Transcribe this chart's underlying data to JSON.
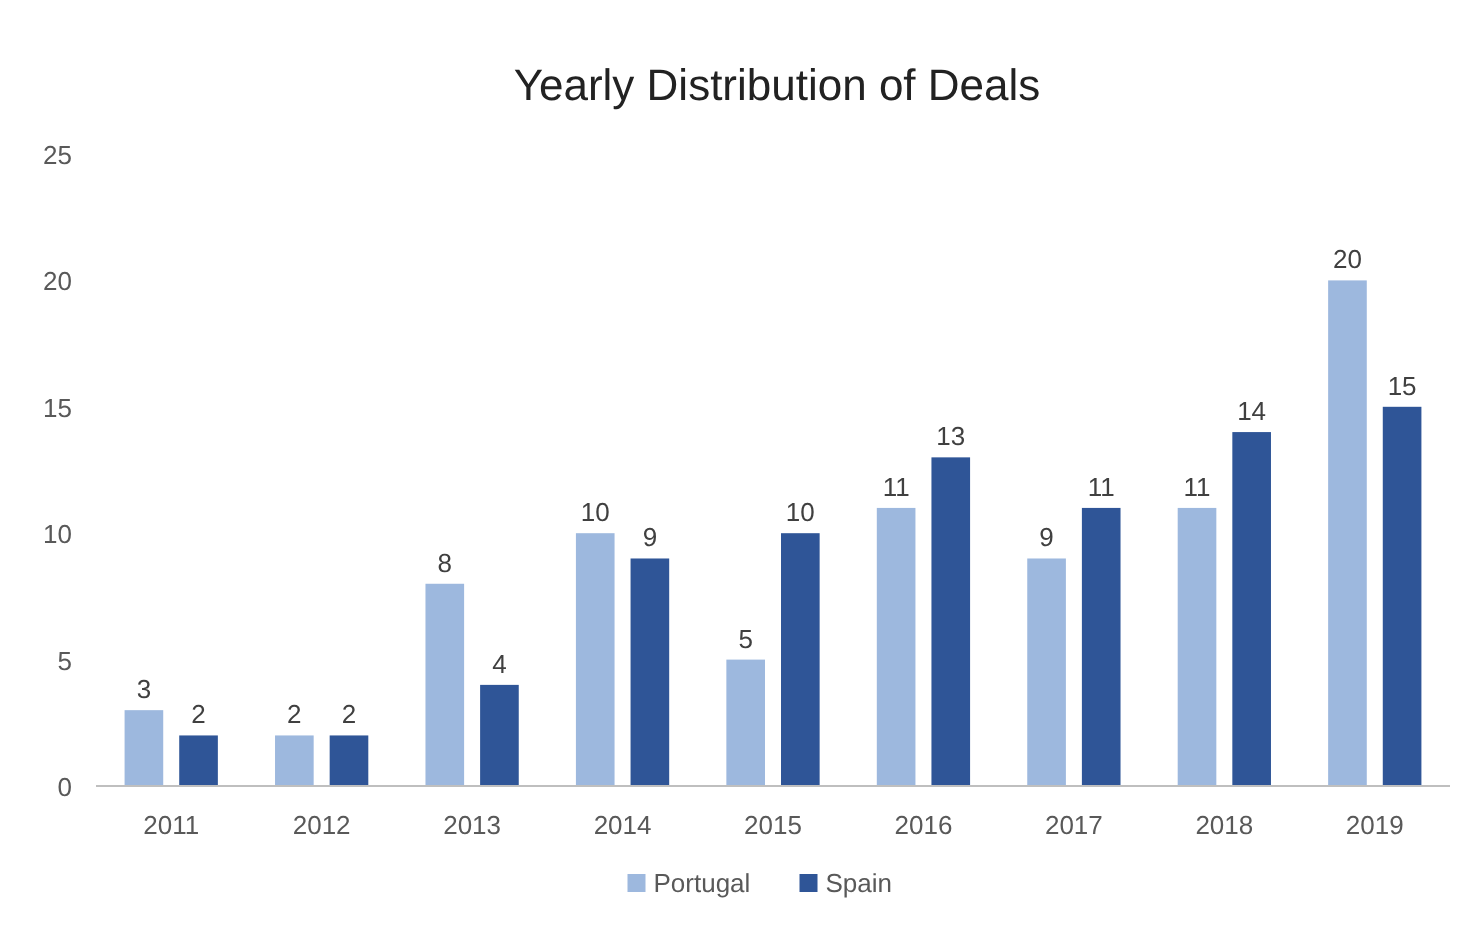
{
  "chart_data": {
    "type": "bar",
    "title": "Yearly Distribution of Deals",
    "categories": [
      "2011",
      "2012",
      "2013",
      "2014",
      "2015",
      "2016",
      "2017",
      "2018",
      "2019"
    ],
    "series": [
      {
        "name": "Portugal",
        "color": "#9db8de",
        "values": [
          3,
          2,
          8,
          10,
          5,
          11,
          9,
          11,
          20
        ]
      },
      {
        "name": "Spain",
        "color": "#2f5597",
        "values": [
          2,
          2,
          4,
          9,
          10,
          13,
          11,
          14,
          15
        ]
      }
    ],
    "ylim": [
      0,
      25
    ],
    "yticks": [
      0,
      5,
      10,
      15,
      20,
      25
    ],
    "data_labels": true,
    "legend": "bottom",
    "grid": false
  }
}
